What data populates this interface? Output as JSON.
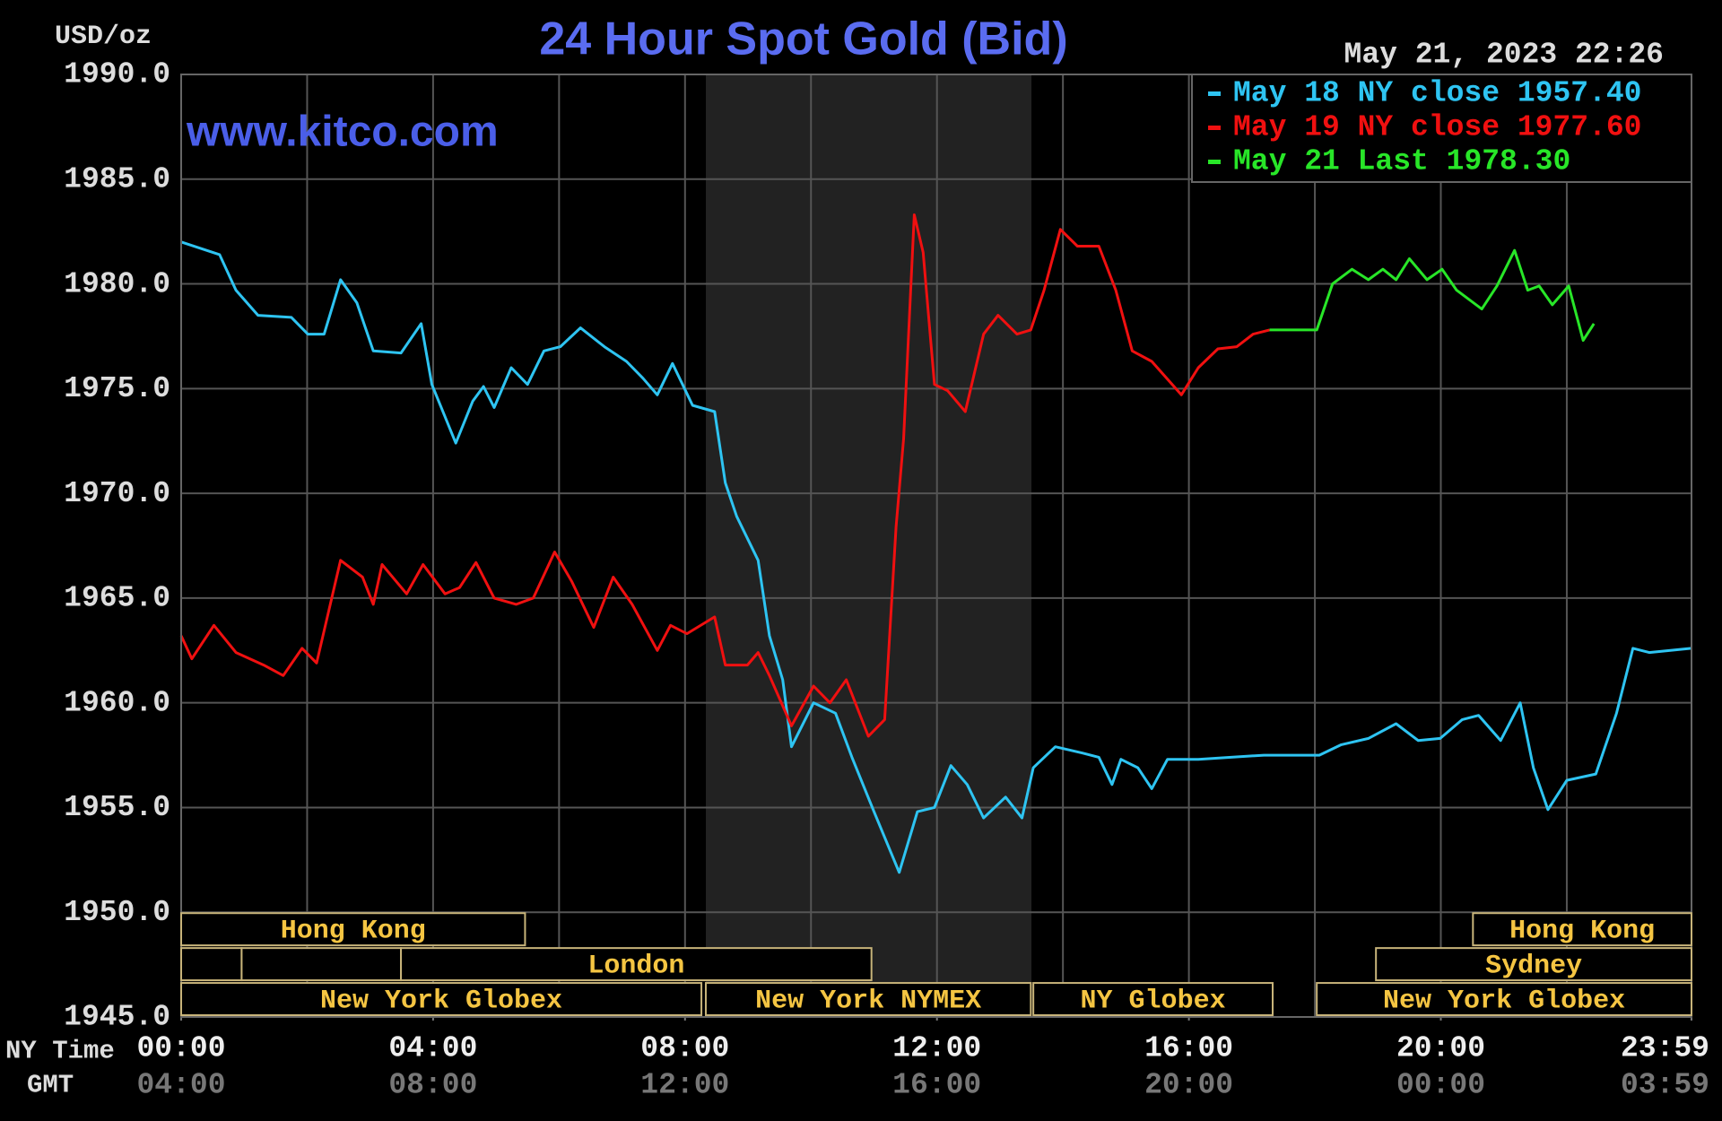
{
  "chart_data": {
    "type": "line",
    "title": "24 Hour Spot Gold (Bid)",
    "unit_label": "USD/oz",
    "timestamp": "May 21, 2023 22:26",
    "watermark": "www.kitco.com",
    "legend": "upper right",
    "grid": true,
    "xlim": [
      0,
      23.98
    ],
    "ylim": [
      1945,
      1990
    ],
    "yticks": [
      {
        "value": 1945,
        "label": "1945.0"
      },
      {
        "value": 1950,
        "label": "1950.0"
      },
      {
        "value": 1955,
        "label": "1955.0"
      },
      {
        "value": 1960,
        "label": "1960.0"
      },
      {
        "value": 1965,
        "label": "1965.0"
      },
      {
        "value": 1970,
        "label": "1970.0"
      },
      {
        "value": 1975,
        "label": "1975.0"
      },
      {
        "value": 1980,
        "label": "1980.0"
      },
      {
        "value": 1985,
        "label": "1985.0"
      },
      {
        "value": 1990,
        "label": "1990.0"
      }
    ],
    "x_axis_label": "NY Time",
    "xticks": [
      {
        "value": 0,
        "label": "00:00"
      },
      {
        "value": 4,
        "label": "04:00"
      },
      {
        "value": 8,
        "label": "08:00"
      },
      {
        "value": 12,
        "label": "12:00"
      },
      {
        "value": 16,
        "label": "16:00"
      },
      {
        "value": 20,
        "label": "20:00"
      },
      {
        "value": 23.98,
        "label": "23:59"
      }
    ],
    "x2_axis_label": "GMT",
    "x2ticks": [
      {
        "value": 0,
        "label": "04:00"
      },
      {
        "value": 4,
        "label": "08:00"
      },
      {
        "value": 8,
        "label": "12:00"
      },
      {
        "value": 12,
        "label": "16:00"
      },
      {
        "value": 16,
        "label": "20:00"
      },
      {
        "value": 20,
        "label": "00:00"
      },
      {
        "value": 23.98,
        "label": "03:59"
      }
    ],
    "xgrid": [
      2,
      4,
      6,
      8,
      10,
      12,
      14,
      16,
      18,
      20,
      22
    ],
    "shaded_range": [
      8.33,
      13.5
    ],
    "sessions": [
      {
        "label": "Hong Kong",
        "start": 0,
        "end": 5.46,
        "row": 0
      },
      {
        "label": "Hong Kong",
        "start": 20.51,
        "end": 23.98,
        "row": 0
      },
      {
        "start": 0,
        "end": 0.96,
        "row": 1
      },
      {
        "start": 0.96,
        "end": 3.49,
        "row": 1
      },
      {
        "label": "London",
        "start": 3.49,
        "end": 10.96,
        "row": 1
      },
      {
        "label": "Sydney",
        "start": 18.97,
        "end": 23.98,
        "row": 1
      },
      {
        "label": "New York Globex",
        "start": 0,
        "end": 8.26,
        "row": 2
      },
      {
        "label": "New York NYMEX",
        "start": 8.33,
        "end": 13.49,
        "row": 2
      },
      {
        "label": "NY Globex",
        "start": 13.53,
        "end": 17.33,
        "row": 2
      },
      {
        "label": "New York Globex",
        "start": 18.03,
        "end": 23.98,
        "row": 2
      }
    ],
    "series": [
      {
        "name": "May 18 NY close 1957.40",
        "color": "#2ec4f2",
        "x": [
          0,
          0.61,
          0.87,
          1.22,
          1.75,
          2.01,
          2.27,
          2.53,
          2.79,
          3.05,
          3.49,
          3.81,
          3.98,
          4.36,
          4.63,
          4.8,
          4.97,
          5.24,
          5.5,
          5.76,
          6.02,
          6.34,
          6.72,
          7.07,
          7.33,
          7.56,
          7.8,
          8.12,
          8.47,
          8.64,
          8.82,
          9.16,
          9.34,
          9.55,
          9.69,
          10.04,
          10.39,
          10.65,
          11,
          11.4,
          11.69,
          11.96,
          12.22,
          12.48,
          12.74,
          13.09,
          13.35,
          13.53,
          13.88,
          14.31,
          14.57,
          14.78,
          14.92,
          15.19,
          15.41,
          15.66,
          16.15,
          16.67,
          17.19,
          18.07,
          18.42,
          18.85,
          19.29,
          19.64,
          19.99,
          20.34,
          20.6,
          20.95,
          21.26,
          21.47,
          21.7,
          22,
          22.46,
          22.79,
          23.05,
          23.31,
          23.98
        ],
        "values": [
          1982.0,
          1981.4,
          1979.7,
          1978.5,
          1978.4,
          1977.6,
          1977.6,
          1980.2,
          1979.1,
          1976.8,
          1976.7,
          1978.1,
          1975.2,
          1972.4,
          1974.4,
          1975.1,
          1974.1,
          1976.0,
          1975.2,
          1976.8,
          1977.0,
          1977.9,
          1977.0,
          1976.3,
          1975.5,
          1974.7,
          1976.2,
          1974.2,
          1973.9,
          1970.5,
          1968.9,
          1966.8,
          1963.2,
          1961.1,
          1957.9,
          1960.0,
          1959.5,
          1957.4,
          1954.8,
          1951.9,
          1954.8,
          1955.0,
          1957.0,
          1956.1,
          1954.5,
          1955.5,
          1954.5,
          1956.9,
          1957.9,
          1957.6,
          1957.4,
          1956.1,
          1957.3,
          1956.9,
          1955.9,
          1957.3,
          1957.3,
          1957.4,
          1957.5,
          1957.5,
          1958.0,
          1958.3,
          1959.0,
          1958.2,
          1958.3,
          1959.2,
          1959.4,
          1958.2,
          1960.0,
          1956.9,
          1954.9,
          1956.3,
          1956.6,
          1959.5,
          1962.6,
          1962.4,
          1962.6
        ]
      },
      {
        "name": "May 19 NY close 1977.60",
        "color": "#f01010",
        "x": [
          0,
          0.17,
          0.52,
          0.87,
          1.31,
          1.62,
          1.92,
          2.15,
          2.53,
          2.88,
          3.05,
          3.19,
          3.58,
          3.84,
          4.19,
          4.42,
          4.68,
          4.97,
          5.32,
          5.59,
          5.93,
          6.2,
          6.55,
          6.86,
          7.16,
          7.56,
          7.77,
          8.03,
          8.47,
          8.64,
          8.99,
          9.16,
          9.34,
          9.69,
          10.04,
          10.3,
          10.56,
          10.91,
          11.17,
          11.35,
          11.47,
          11.64,
          11.78,
          11.96,
          12.17,
          12.45,
          12.74,
          12.97,
          13.27,
          13.49,
          13.7,
          13.96,
          14.23,
          14.57,
          14.84,
          15.1,
          15.41,
          15.88,
          16.15,
          16.46,
          16.76,
          17.02,
          17.28
        ],
        "values": [
          1963.2,
          1962.1,
          1963.7,
          1962.4,
          1961.8,
          1961.3,
          1962.6,
          1961.9,
          1966.8,
          1966.0,
          1964.7,
          1966.6,
          1965.2,
          1966.6,
          1965.2,
          1965.5,
          1966.7,
          1965.0,
          1964.7,
          1965.0,
          1967.2,
          1965.8,
          1963.6,
          1966.0,
          1964.7,
          1962.5,
          1963.7,
          1963.3,
          1964.1,
          1961.8,
          1961.8,
          1962.4,
          1961.3,
          1958.9,
          1960.8,
          1960.0,
          1961.1,
          1958.4,
          1959.2,
          1968.4,
          1972.6,
          1983.3,
          1981.5,
          1975.2,
          1974.9,
          1973.9,
          1977.6,
          1978.5,
          1977.6,
          1977.8,
          1979.7,
          1982.6,
          1981.8,
          1981.8,
          1979.7,
          1976.8,
          1976.3,
          1974.7,
          1976.0,
          1976.9,
          1977.0,
          1977.6,
          1977.8
        ]
      },
      {
        "name": "May 21 Last 1978.30",
        "color": "#28e628",
        "x": [
          17.28,
          18.03,
          18.28,
          18.59,
          18.85,
          19.08,
          19.29,
          19.5,
          19.78,
          20.02,
          20.25,
          20.65,
          20.89,
          21.17,
          21.38,
          21.56,
          21.77,
          22.03,
          22.26,
          22.43
        ],
        "values": [
          1977.8,
          1977.8,
          1980.0,
          1980.7,
          1980.2,
          1980.7,
          1980.2,
          1981.2,
          1980.2,
          1980.7,
          1979.7,
          1978.8,
          1979.9,
          1981.6,
          1979.7,
          1979.9,
          1979.0,
          1979.9,
          1977.3,
          1978.1
        ]
      }
    ]
  }
}
